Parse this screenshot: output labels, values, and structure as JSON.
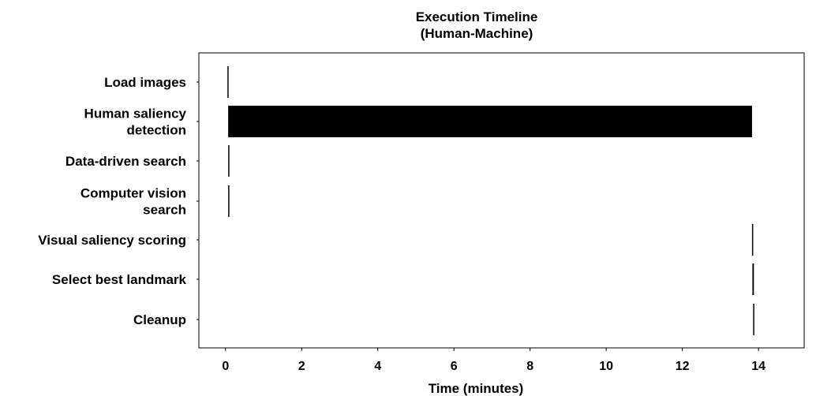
{
  "chart_data": {
    "type": "bar",
    "orientation": "horizontal",
    "title_lines": [
      "Execution Timeline",
      "(Human-Machine)"
    ],
    "xlabel": "Time (minutes)",
    "ylabel": "",
    "xlim": [
      -0.7,
      15.2
    ],
    "xticks": [
      0,
      2,
      4,
      6,
      8,
      10,
      12,
      14
    ],
    "grid": false,
    "legend": "none",
    "bar_color": "#000000",
    "tasks": [
      {
        "label_lines": [
          "Load images"
        ],
        "start": 0.05,
        "end": 0.07
      },
      {
        "label_lines": [
          "Human saliency",
          "detection"
        ],
        "start": 0.07,
        "end": 13.83
      },
      {
        "label_lines": [
          "Data-driven search"
        ],
        "start": 0.07,
        "end": 0.09
      },
      {
        "label_lines": [
          "Computer vision",
          "search"
        ],
        "start": 0.07,
        "end": 0.09
      },
      {
        "label_lines": [
          "Visual saliency scoring"
        ],
        "start": 13.83,
        "end": 13.86
      },
      {
        "label_lines": [
          "Select best landmark"
        ],
        "start": 13.84,
        "end": 13.88
      },
      {
        "label_lines": [
          "Cleanup"
        ],
        "start": 13.86,
        "end": 13.89
      }
    ]
  }
}
